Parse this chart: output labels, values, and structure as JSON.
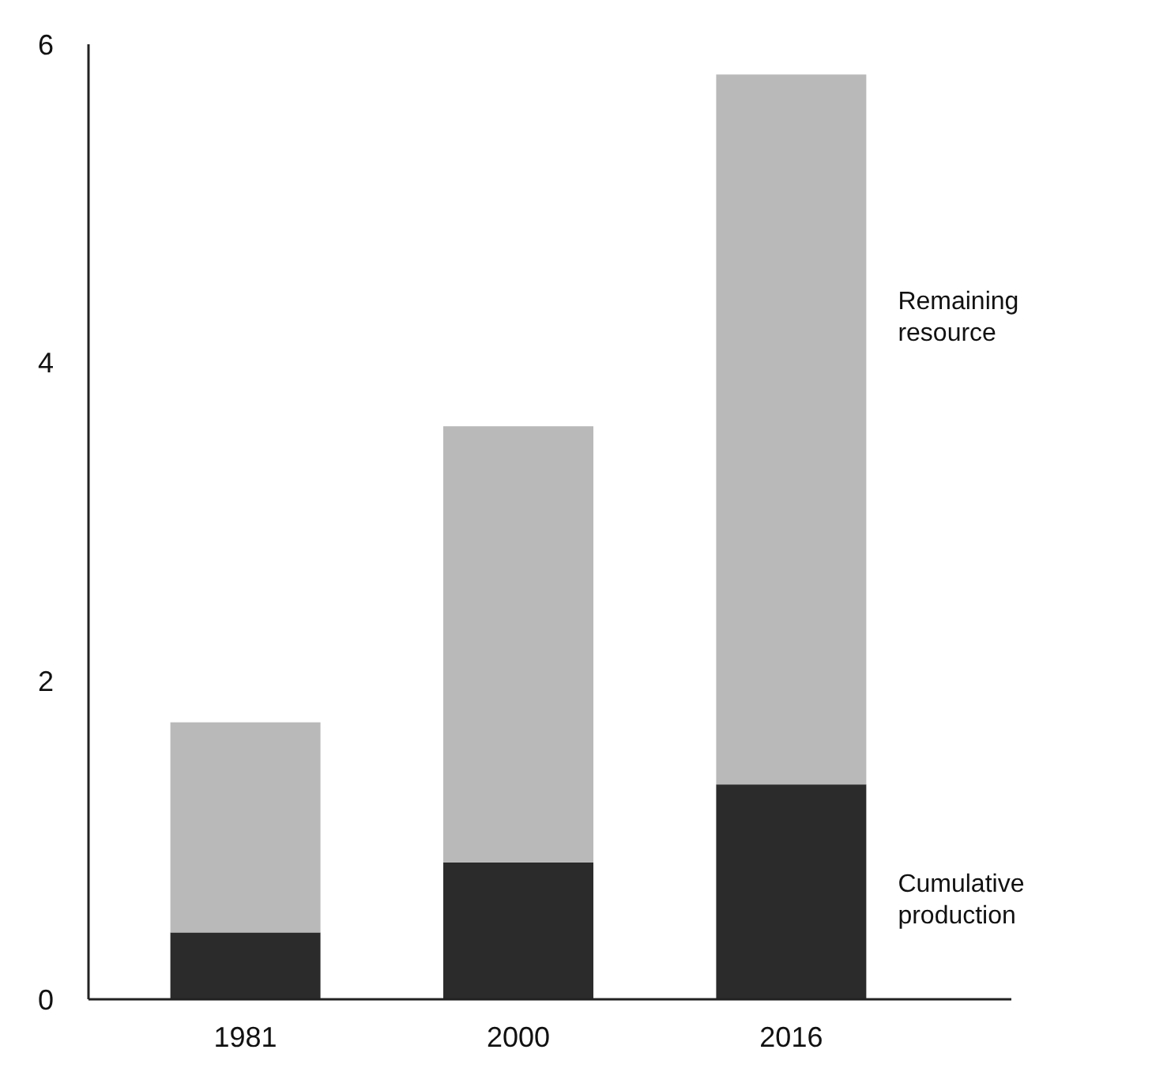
{
  "chart_data": {
    "type": "bar",
    "stacked": true,
    "categories": [
      "1981",
      "2000",
      "2016"
    ],
    "series": [
      {
        "name": "Cumulative production",
        "color": "#2b2b2b",
        "values": [
          0.42,
          0.86,
          1.35
        ]
      },
      {
        "name": "Remaining resource",
        "color": "#b9b9b9",
        "values": [
          1.32,
          2.74,
          4.46
        ]
      }
    ],
    "ylim": [
      0,
      6
    ],
    "yticks": [
      0,
      2,
      4,
      6
    ],
    "grid": false
  }
}
